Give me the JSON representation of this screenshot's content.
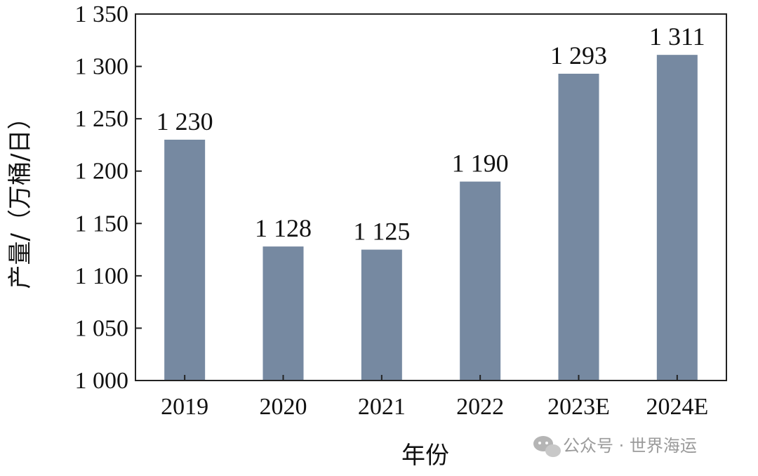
{
  "chart_data": {
    "type": "bar",
    "categories": [
      "2019",
      "2020",
      "2021",
      "2022",
      "2023E",
      "2024E"
    ],
    "values": [
      1230,
      1128,
      1125,
      1190,
      1293,
      1311
    ],
    "data_labels": [
      "1 230",
      "1 128",
      "1 125",
      "1 190",
      "1 293",
      "1 311"
    ],
    "title": "",
    "xlabel": "年份",
    "ylabel": "产量/（万桶/日）",
    "ylim": [
      1000,
      1350
    ],
    "yticks": [
      1000,
      1050,
      1100,
      1150,
      1200,
      1250,
      1300,
      1350
    ],
    "ytick_labels": [
      "1 000",
      "1 050",
      "1 100",
      "1 150",
      "1 200",
      "1 250",
      "1 300",
      "1 350"
    ],
    "grid": false,
    "bar_color": "#7689a1"
  },
  "watermark": {
    "text": "公众号 · 世界海运",
    "icon": "wechat-icon"
  }
}
